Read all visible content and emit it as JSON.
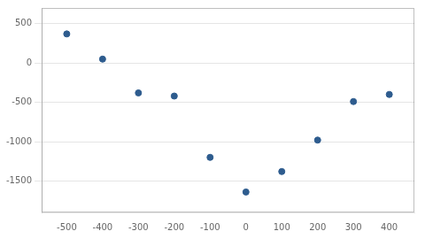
{
  "chart_data": {
    "type": "scatter",
    "x": [
      -500,
      -400,
      -300,
      -200,
      -100,
      0,
      100,
      200,
      300,
      400
    ],
    "values": [
      370,
      50,
      -380,
      -420,
      -1200,
      -1640,
      -1380,
      -980,
      -490,
      -400
    ],
    "color": "#2E5C8E",
    "xlim": [
      -570,
      470
    ],
    "ylim": [
      -1900,
      700
    ],
    "xticks": [
      -500,
      -400,
      -300,
      -200,
      -100,
      0,
      100,
      200,
      300,
      400
    ],
    "yticks": [
      500,
      0,
      -500,
      -1000,
      -1500
    ],
    "grid": "y"
  }
}
